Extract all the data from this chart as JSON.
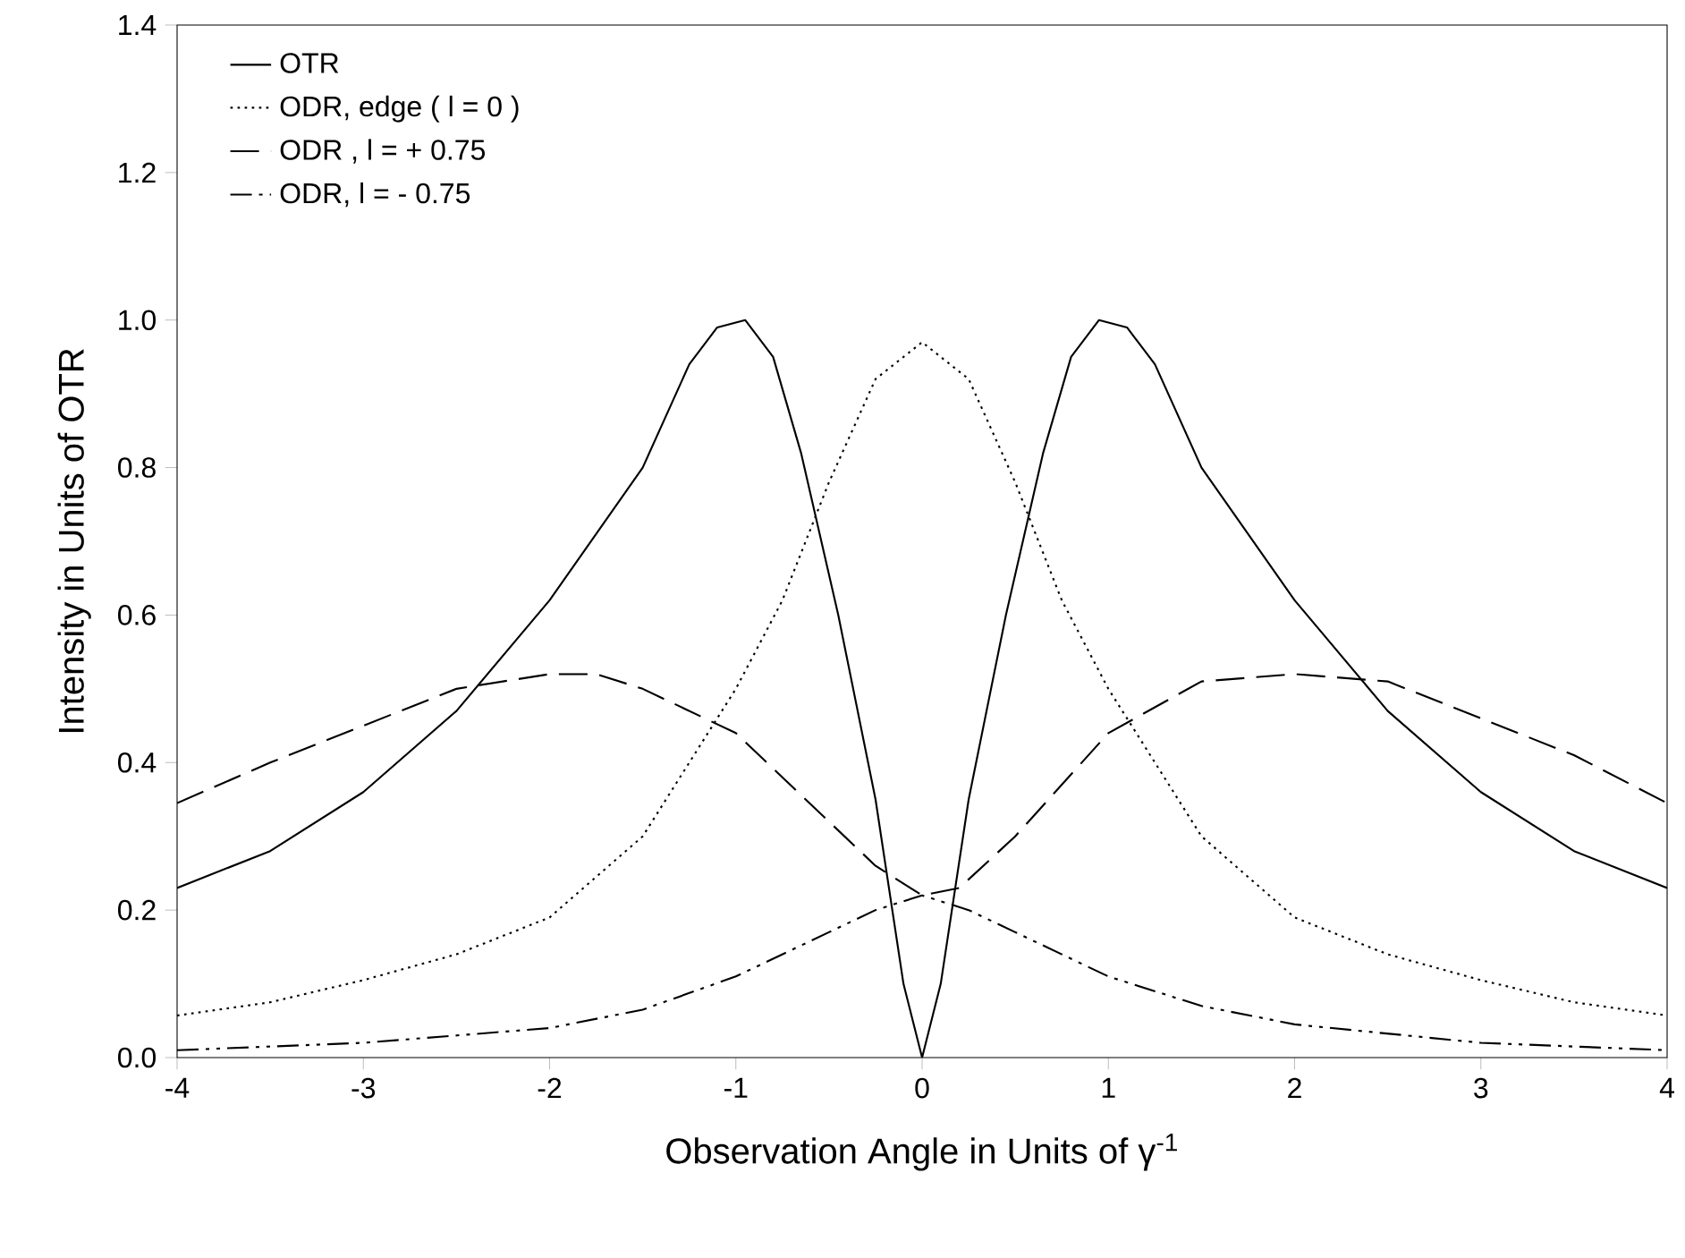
{
  "chart_data": {
    "type": "line",
    "xlabel": "Observation Angle in Units of γ$^{-1}$",
    "ylabel": "Intensity in Units of OTR",
    "xlim": [
      -4,
      4
    ],
    "ylim": [
      0,
      1.4
    ],
    "xticks": [
      -4,
      -3,
      -2,
      -1,
      0,
      1,
      2,
      3,
      4
    ],
    "yticks": [
      {
        "value": 0,
        "label": "0.0"
      },
      {
        "value": 0.2,
        "label": "0.2"
      },
      {
        "value": 0.4,
        "label": "0.4"
      },
      {
        "value": 0.6,
        "label": "0.6"
      },
      {
        "value": 0.8,
        "label": "0.8"
      },
      {
        "value": 1.0,
        "label": "1.0"
      },
      {
        "value": 1.2,
        "label": "1.2"
      },
      {
        "value": 1.4,
        "label": "1.4"
      }
    ],
    "legend": "top left",
    "marker": "none",
    "grid": false,
    "series": [
      {
        "name": "OTR",
        "color": "#000000",
        "line_style": "solid",
        "x": [
          -4,
          -3.5,
          -3,
          -2.5,
          -2,
          -1.5,
          -1.25,
          -1.1,
          -0.95,
          -0.8,
          -0.65,
          -0.45,
          -0.25,
          -0.1,
          0,
          0.1,
          0.25,
          0.45,
          0.65,
          0.8,
          0.95,
          1.1,
          1.25,
          1.5,
          2,
          2.5,
          3,
          3.5,
          4
        ],
        "values": [
          0.23,
          0.28,
          0.36,
          0.47,
          0.62,
          0.8,
          0.94,
          0.99,
          1.0,
          0.95,
          0.82,
          0.6,
          0.35,
          0.1,
          0,
          0.1,
          0.35,
          0.6,
          0.82,
          0.95,
          1.0,
          0.99,
          0.94,
          0.8,
          0.62,
          0.47,
          0.36,
          0.28,
          0.23
        ]
      },
      {
        "name": "ODR, edge ( l = 0 )",
        "color": "#000000",
        "line_style": "dotted",
        "x": [
          -4,
          -3.5,
          -3,
          -2.5,
          -2,
          -1.5,
          -1,
          -0.75,
          -0.5,
          -0.25,
          0,
          0.25,
          0.5,
          0.75,
          1,
          1.5,
          2,
          2.5,
          3,
          3.5,
          4
        ],
        "values": [
          0.057,
          0.075,
          0.105,
          0.14,
          0.19,
          0.3,
          0.5,
          0.62,
          0.78,
          0.92,
          0.97,
          0.92,
          0.78,
          0.62,
          0.5,
          0.3,
          0.19,
          0.14,
          0.105,
          0.075,
          0.057
        ]
      },
      {
        "name": "ODR , l = + 0.75",
        "color": "#000000",
        "line_style": "dashed",
        "x": [
          -4,
          -3.5,
          -3,
          -2.5,
          -2,
          -1.75,
          -1.5,
          -1,
          -0.5,
          -0.25,
          0,
          0.2,
          0.5,
          1,
          1.5,
          2,
          2.5,
          3,
          3.5,
          4
        ],
        "values": [
          0.345,
          0.4,
          0.45,
          0.5,
          0.52,
          0.52,
          0.5,
          0.44,
          0.32,
          0.26,
          0.22,
          0.23,
          0.3,
          0.44,
          0.51,
          0.52,
          0.51,
          0.46,
          0.41,
          0.345
        ]
      },
      {
        "name": "ODR,  l = - 0.75",
        "color": "#000000",
        "line_style": "dashdot",
        "x": [
          -4,
          -3,
          -2,
          -1.5,
          -1,
          -0.5,
          -0.25,
          0,
          0.25,
          0.5,
          1,
          1.5,
          2,
          3,
          4
        ],
        "values": [
          0.01,
          0.02,
          0.04,
          0.065,
          0.11,
          0.17,
          0.2,
          0.22,
          0.2,
          0.17,
          0.11,
          0.07,
          0.045,
          0.02,
          0.01
        ]
      }
    ]
  }
}
